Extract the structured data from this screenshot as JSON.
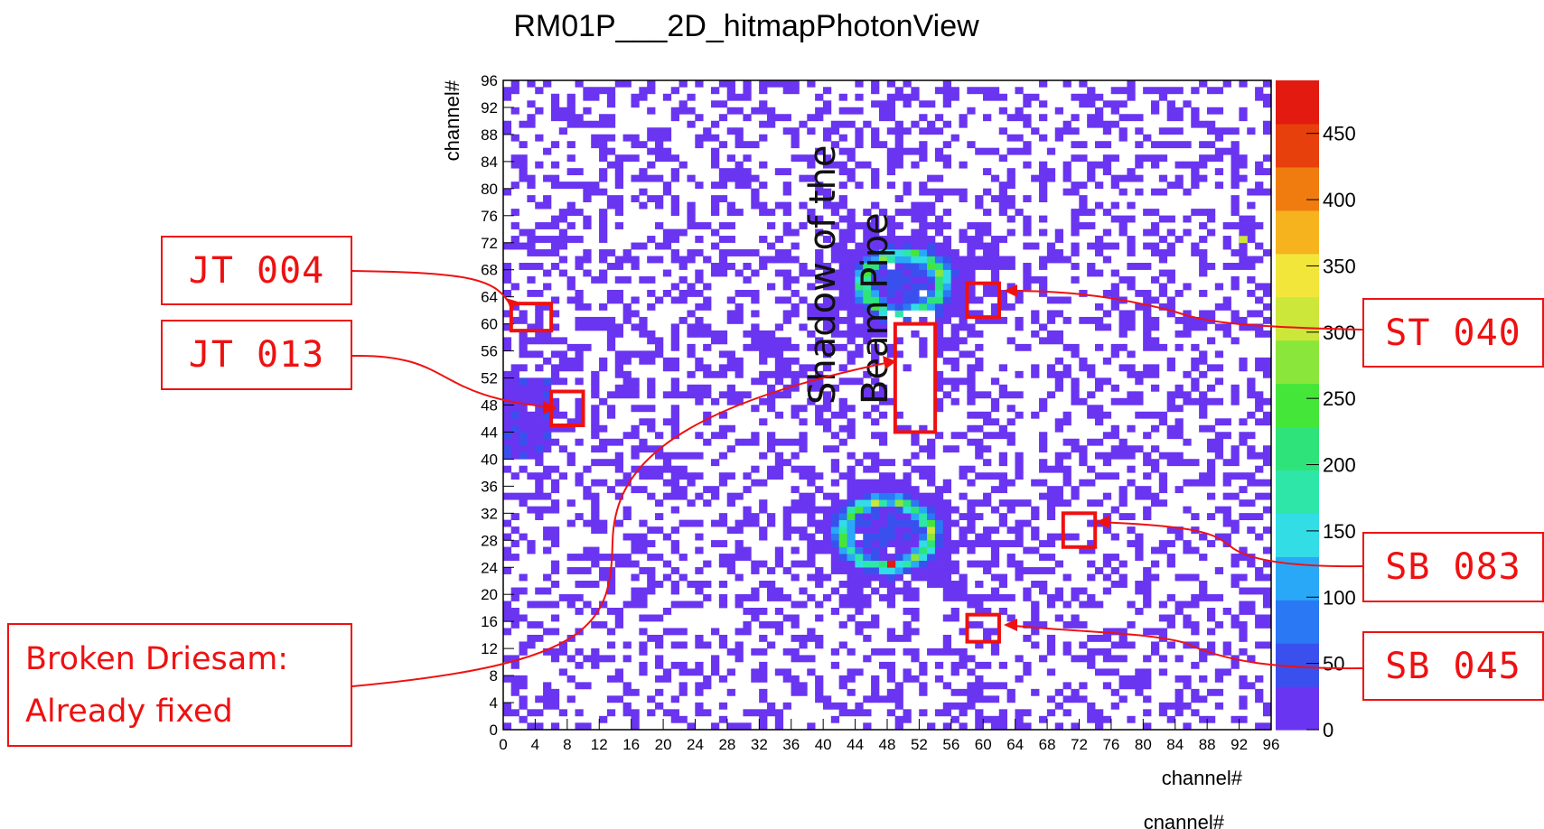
{
  "chart_data": {
    "type": "heatmap",
    "title": "RM01P___2D_hitmapPhotonView",
    "xlabel": "channel#",
    "ylabel": "channel#",
    "xlabel_repeat": "cnannel#",
    "xlim": [
      0,
      96
    ],
    "ylim": [
      0,
      96
    ],
    "xticks": [
      0,
      4,
      8,
      12,
      16,
      20,
      24,
      28,
      32,
      36,
      40,
      44,
      48,
      52,
      56,
      60,
      64,
      68,
      72,
      76,
      80,
      84,
      88,
      92,
      96
    ],
    "yticks": [
      0,
      4,
      8,
      12,
      16,
      20,
      24,
      28,
      32,
      36,
      40,
      44,
      48,
      52,
      56,
      60,
      64,
      68,
      72,
      76,
      80,
      84,
      88,
      92,
      96
    ],
    "zlim": [
      0,
      490
    ],
    "zticks": [
      0,
      50,
      100,
      150,
      200,
      250,
      300,
      350,
      400,
      450
    ],
    "colorscale": [
      "#6a35f0",
      "#3a50ee",
      "#2a78f4",
      "#2aa8f8",
      "#33dde6",
      "#2ee6a8",
      "#2ee37a",
      "#45e63a",
      "#8ae63a",
      "#cde63a",
      "#f2e63a",
      "#f6b31e",
      "#f07c10",
      "#e8400c",
      "#e31a10"
    ],
    "rings": [
      {
        "center": [
          50,
          66
        ],
        "radius": 5,
        "peak": 330
      },
      {
        "center": [
          48,
          29
        ],
        "radius": 5.5,
        "peak": 320
      }
    ],
    "hot_cells": [
      {
        "x": 48.5,
        "y": 24.5,
        "value": 470
      },
      {
        "x": 92.5,
        "y": 72.5,
        "value": 300
      }
    ],
    "annotation": "Shadow of the\nBeam Pipe",
    "marked_regions": [
      {
        "label": "JT 004",
        "x": [
          1,
          6
        ],
        "y": [
          59,
          63
        ]
      },
      {
        "label": "JT 013",
        "x": [
          6,
          10
        ],
        "y": [
          45,
          50
        ]
      },
      {
        "label": "ST 040",
        "x": [
          58,
          62
        ],
        "y": [
          61,
          66
        ]
      },
      {
        "label": "SB 083",
        "x": [
          70,
          74
        ],
        "y": [
          27,
          32
        ]
      },
      {
        "label": "SB 045",
        "x": [
          58,
          62
        ],
        "y": [
          13,
          17
        ]
      },
      {
        "label": "Broken Driesam: Already fixed",
        "x": [
          49,
          54
        ],
        "y": [
          44,
          60
        ]
      }
    ]
  },
  "callouts": {
    "jt004": "JT 004",
    "jt013": "JT 013",
    "st040": "ST 040",
    "sb083": "SB 083",
    "sb045": "SB 045",
    "driesam_line1": "Broken Driesam:",
    "driesam_line2": "Already fixed"
  },
  "colors": {
    "accent": "#ee1111",
    "background": "#ffffff"
  }
}
